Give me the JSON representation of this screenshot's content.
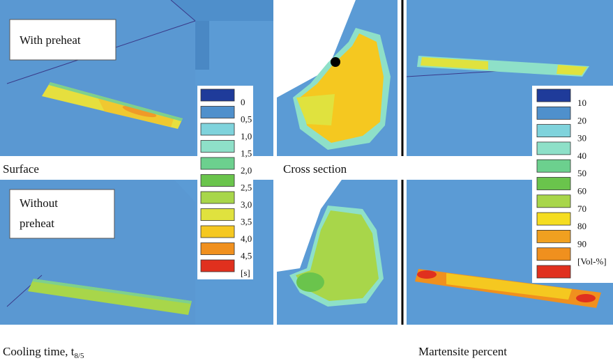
{
  "panels": {
    "with_preheat": "With preheat",
    "without_preheat": [
      "Without",
      "preheat"
    ],
    "surface": "Surface",
    "cross_section": "Cross section"
  },
  "cooling_time": {
    "label": "Cooling time, t",
    "subscript": "8/5",
    "legend": {
      "labels": [
        "0",
        "0,5",
        "1,0",
        "1,5",
        "2,0",
        "2,5",
        "3,0",
        "3,5",
        "4,0",
        "4,5",
        "[s]"
      ],
      "colors": [
        "#1f3b9a",
        "#4f90cc",
        "#7fd3dc",
        "#8ee0c8",
        "#6cd08e",
        "#6ac44c",
        "#a8d64a",
        "#e0e23e",
        "#f5c820",
        "#f0901e",
        "#e0301e"
      ]
    }
  },
  "martensite": {
    "label": "Martensite percent",
    "legend": {
      "labels": [
        "10",
        "20",
        "30",
        "40",
        "50",
        "60",
        "70",
        "80",
        "90",
        "[Vol-%]"
      ],
      "colors": [
        "#1f3b9a",
        "#4f90cc",
        "#7fd3dc",
        "#8ee0c8",
        "#6cd08e",
        "#6ac44c",
        "#a8d64a",
        "#f5dd20",
        "#f0a020",
        "#f0901e",
        "#e0301e"
      ]
    }
  }
}
